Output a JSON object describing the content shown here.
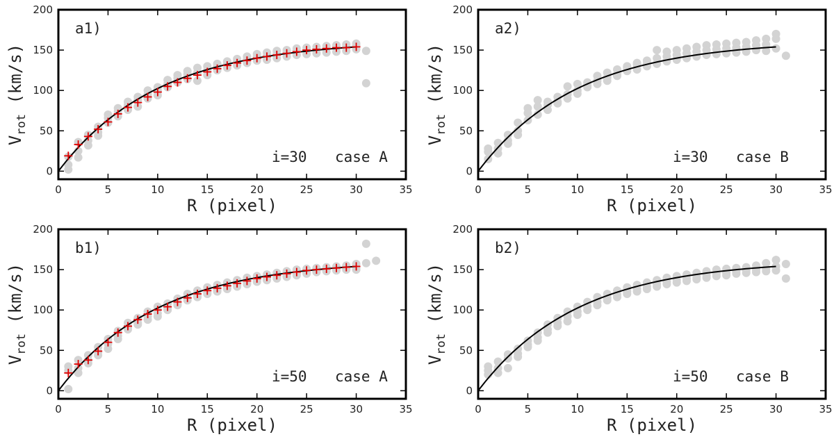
{
  "chart_data": [
    {
      "id": "a1",
      "type": "scatter",
      "panel_label": "a1)",
      "inclination_label": "i=30",
      "case_label": "case A",
      "xlabel": "R (pixel)",
      "ylabel_main": "V",
      "ylabel_sub": "rot",
      "ylabel_unit": "(km/s)",
      "xlim": [
        0,
        35
      ],
      "ylim": [
        -10,
        200
      ],
      "xticks": [
        0,
        5,
        10,
        15,
        20,
        25,
        30,
        35
      ],
      "yticks": [
        0,
        50,
        100,
        150,
        200
      ],
      "model_curve": {
        "vmax": 162,
        "rscale": 10
      },
      "fit_points": {
        "r": [
          1,
          2,
          3,
          4,
          5,
          6,
          7,
          8,
          9,
          10,
          11,
          12,
          13,
          14,
          15,
          16,
          17,
          18,
          19,
          20,
          21,
          22,
          23,
          24,
          25,
          26,
          27,
          28,
          29,
          30
        ],
        "v": [
          19,
          33,
          43,
          52,
          61,
          71,
          79,
          85,
          92,
          98,
          105,
          110,
          115,
          119,
          123,
          127,
          131,
          134,
          137,
          140,
          142,
          144,
          146,
          148,
          150,
          151,
          152,
          153,
          153,
          154
        ]
      },
      "scatter_points": {
        "r": [
          1,
          1,
          1,
          2,
          2,
          2,
          3,
          3,
          3,
          4,
          4,
          4,
          5,
          5,
          5,
          6,
          6,
          6,
          7,
          7,
          7,
          8,
          8,
          8,
          9,
          9,
          9,
          10,
          10,
          10,
          11,
          11,
          11,
          12,
          12,
          12,
          13,
          13,
          13,
          14,
          14,
          14,
          15,
          15,
          15,
          16,
          16,
          16,
          17,
          17,
          17,
          18,
          18,
          18,
          19,
          19,
          19,
          20,
          20,
          20,
          21,
          21,
          21,
          22,
          22,
          22,
          23,
          23,
          23,
          24,
          24,
          24,
          25,
          25,
          25,
          26,
          26,
          26,
          27,
          27,
          27,
          28,
          28,
          28,
          29,
          29,
          29,
          30,
          30,
          30,
          31,
          31
        ],
        "v": [
          8,
          2,
          18,
          36,
          25,
          17,
          45,
          38,
          32,
          55,
          48,
          44,
          66,
          60,
          70,
          74,
          68,
          78,
          82,
          76,
          86,
          88,
          80,
          92,
          95,
          90,
          100,
          100,
          94,
          104,
          108,
          104,
          113,
          115,
          110,
          119,
          120,
          114,
          124,
          122,
          112,
          128,
          125,
          119,
          130,
          130,
          125,
          133,
          133,
          128,
          136,
          136,
          131,
          139,
          139,
          134,
          142,
          142,
          137,
          145,
          143,
          138,
          147,
          145,
          140,
          149,
          147,
          142,
          150,
          149,
          144,
          152,
          150,
          145,
          153,
          151,
          146,
          154,
          152,
          147,
          155,
          153,
          148,
          156,
          154,
          149,
          157,
          155,
          151,
          158,
          149,
          109
        ]
      }
    },
    {
      "id": "a2",
      "type": "scatter",
      "panel_label": "a2)",
      "inclination_label": "i=30",
      "case_label": "case B",
      "xlabel": "R (pixel)",
      "ylabel_main": "V",
      "ylabel_sub": "rot",
      "ylabel_unit": "(km/s)",
      "xlim": [
        0,
        35
      ],
      "ylim": [
        -10,
        200
      ],
      "xticks": [
        0,
        5,
        10,
        15,
        20,
        25,
        30,
        35
      ],
      "yticks": [
        0,
        50,
        100,
        150,
        200
      ],
      "model_curve": {
        "vmax": 162,
        "rscale": 10
      },
      "fit_points": {
        "r": [],
        "v": []
      },
      "scatter_points": {
        "r": [
          1,
          1,
          1,
          2,
          2,
          2,
          3,
          3,
          3,
          4,
          4,
          4,
          5,
          5,
          5,
          6,
          6,
          6,
          7,
          7,
          7,
          8,
          8,
          8,
          9,
          9,
          9,
          10,
          10,
          10,
          11,
          11,
          11,
          12,
          12,
          12,
          13,
          13,
          13,
          14,
          14,
          14,
          15,
          15,
          15,
          16,
          16,
          16,
          17,
          17,
          17,
          18,
          18,
          18,
          19,
          19,
          19,
          20,
          20,
          20,
          21,
          21,
          21,
          22,
          22,
          22,
          23,
          23,
          23,
          24,
          24,
          24,
          25,
          25,
          25,
          26,
          26,
          26,
          27,
          27,
          27,
          28,
          28,
          28,
          29,
          29,
          29,
          30,
          30,
          30,
          31
        ],
        "v": [
          24,
          15,
          28,
          35,
          28,
          22,
          45,
          38,
          34,
          60,
          50,
          45,
          78,
          63,
          72,
          88,
          70,
          80,
          82,
          76,
          86,
          92,
          86,
          84,
          105,
          95,
          90,
          108,
          100,
          96,
          110,
          104,
          106,
          118,
          112,
          108,
          122,
          116,
          112,
          126,
          118,
          120,
          130,
          124,
          128,
          134,
          126,
          132,
          137,
          130,
          133,
          150,
          133,
          140,
          148,
          136,
          142,
          150,
          138,
          144,
          152,
          140,
          146,
          154,
          142,
          148,
          156,
          144,
          150,
          157,
          145,
          151,
          158,
          146,
          152,
          159,
          147,
          153,
          160,
          148,
          154,
          162,
          150,
          156,
          164,
          149,
          157,
          170,
          152,
          164,
          143
        ]
      }
    },
    {
      "id": "b1",
      "type": "scatter",
      "panel_label": "b1)",
      "inclination_label": "i=50",
      "case_label": "case A",
      "xlabel": "R (pixel)",
      "ylabel_main": "V",
      "ylabel_sub": "rot",
      "ylabel_unit": "(km/s)",
      "xlim": [
        0,
        35
      ],
      "ylim": [
        -10,
        200
      ],
      "xticks": [
        0,
        5,
        10,
        15,
        20,
        25,
        30,
        35
      ],
      "yticks": [
        0,
        50,
        100,
        150,
        200
      ],
      "model_curve": {
        "vmax": 162,
        "rscale": 10
      },
      "fit_points": {
        "r": [
          1,
          2,
          3,
          4,
          5,
          6,
          7,
          8,
          9,
          10,
          11,
          12,
          13,
          14,
          15,
          16,
          17,
          18,
          19,
          20,
          21,
          22,
          23,
          24,
          25,
          26,
          27,
          28,
          29,
          30
        ],
        "v": [
          22,
          33,
          38,
          49,
          60,
          72,
          80,
          88,
          95,
          100,
          104,
          110,
          115,
          120,
          124,
          127,
          130,
          133,
          136,
          139,
          141,
          143,
          145,
          147,
          149,
          150,
          151,
          152,
          153,
          154
        ]
      },
      "scatter_points": {
        "r": [
          1,
          1,
          1,
          2,
          2,
          2,
          3,
          3,
          3,
          4,
          4,
          4,
          5,
          5,
          5,
          6,
          6,
          6,
          7,
          7,
          7,
          8,
          8,
          8,
          9,
          9,
          9,
          10,
          10,
          10,
          11,
          11,
          11,
          12,
          12,
          12,
          13,
          13,
          13,
          14,
          14,
          14,
          15,
          15,
          15,
          16,
          16,
          16,
          17,
          17,
          17,
          18,
          18,
          18,
          19,
          19,
          19,
          20,
          20,
          20,
          21,
          21,
          21,
          22,
          22,
          22,
          23,
          23,
          23,
          24,
          24,
          24,
          25,
          25,
          25,
          26,
          26,
          26,
          27,
          27,
          27,
          28,
          28,
          28,
          29,
          29,
          29,
          30,
          30,
          30,
          31,
          31,
          32
        ],
        "v": [
          30,
          2,
          25,
          38,
          28,
          22,
          44,
          38,
          34,
          54,
          48,
          44,
          64,
          58,
          52,
          74,
          68,
          64,
          84,
          78,
          76,
          90,
          84,
          82,
          98,
          92,
          88,
          104,
          96,
          92,
          108,
          102,
          100,
          114,
          108,
          106,
          120,
          114,
          112,
          124,
          118,
          116,
          128,
          122,
          120,
          131,
          125,
          123,
          134,
          128,
          126,
          137,
          131,
          129,
          140,
          134,
          132,
          142,
          137,
          135,
          144,
          139,
          137,
          146,
          141,
          139,
          148,
          143,
          141,
          150,
          145,
          143,
          151,
          146,
          145,
          152,
          148,
          147,
          153,
          149,
          148,
          154,
          150,
          149,
          155,
          151,
          150,
          157,
          152,
          150,
          182,
          158,
          161
        ]
      }
    },
    {
      "id": "b2",
      "type": "scatter",
      "panel_label": "b2)",
      "inclination_label": "i=50",
      "case_label": "case B",
      "xlabel": "R (pixel)",
      "ylabel_main": "V",
      "ylabel_sub": "rot",
      "ylabel_unit": "(km/s)",
      "xlim": [
        0,
        35
      ],
      "ylim": [
        -10,
        200
      ],
      "xticks": [
        0,
        5,
        10,
        15,
        20,
        25,
        30,
        35
      ],
      "yticks": [
        0,
        50,
        100,
        150,
        200
      ],
      "model_curve": {
        "vmax": 162,
        "rscale": 10
      },
      "fit_points": {
        "r": [],
        "v": []
      },
      "scatter_points": {
        "r": [
          1,
          1,
          1,
          2,
          2,
          2,
          3,
          3,
          3,
          4,
          4,
          4,
          5,
          5,
          5,
          6,
          6,
          6,
          7,
          7,
          7,
          8,
          8,
          8,
          9,
          9,
          9,
          10,
          10,
          10,
          11,
          11,
          11,
          12,
          12,
          12,
          13,
          13,
          13,
          14,
          14,
          14,
          15,
          15,
          15,
          16,
          16,
          16,
          17,
          17,
          17,
          18,
          18,
          18,
          19,
          19,
          19,
          20,
          20,
          20,
          21,
          21,
          21,
          22,
          22,
          22,
          23,
          23,
          23,
          24,
          24,
          24,
          25,
          25,
          25,
          26,
          26,
          26,
          27,
          27,
          27,
          28,
          28,
          28,
          29,
          29,
          29,
          30,
          30,
          30,
          31,
          31
        ],
        "v": [
          30,
          20,
          25,
          36,
          28,
          22,
          45,
          40,
          28,
          52,
          46,
          42,
          62,
          57,
          54,
          72,
          66,
          62,
          82,
          76,
          72,
          90,
          84,
          80,
          98,
          92,
          86,
          104,
          98,
          94,
          110,
          104,
          100,
          116,
          110,
          106,
          120,
          115,
          112,
          124,
          119,
          116,
          128,
          123,
          120,
          131,
          126,
          123,
          134,
          129,
          126,
          137,
          132,
          129,
          140,
          135,
          132,
          142,
          137,
          134,
          144,
          139,
          136,
          146,
          141,
          138,
          148,
          143,
          140,
          150,
          145,
          142,
          151,
          146,
          143,
          152,
          148,
          145,
          153,
          149,
          146,
          155,
          150,
          147,
          158,
          151,
          148,
          162,
          154,
          149,
          157,
          139
        ]
      }
    }
  ]
}
